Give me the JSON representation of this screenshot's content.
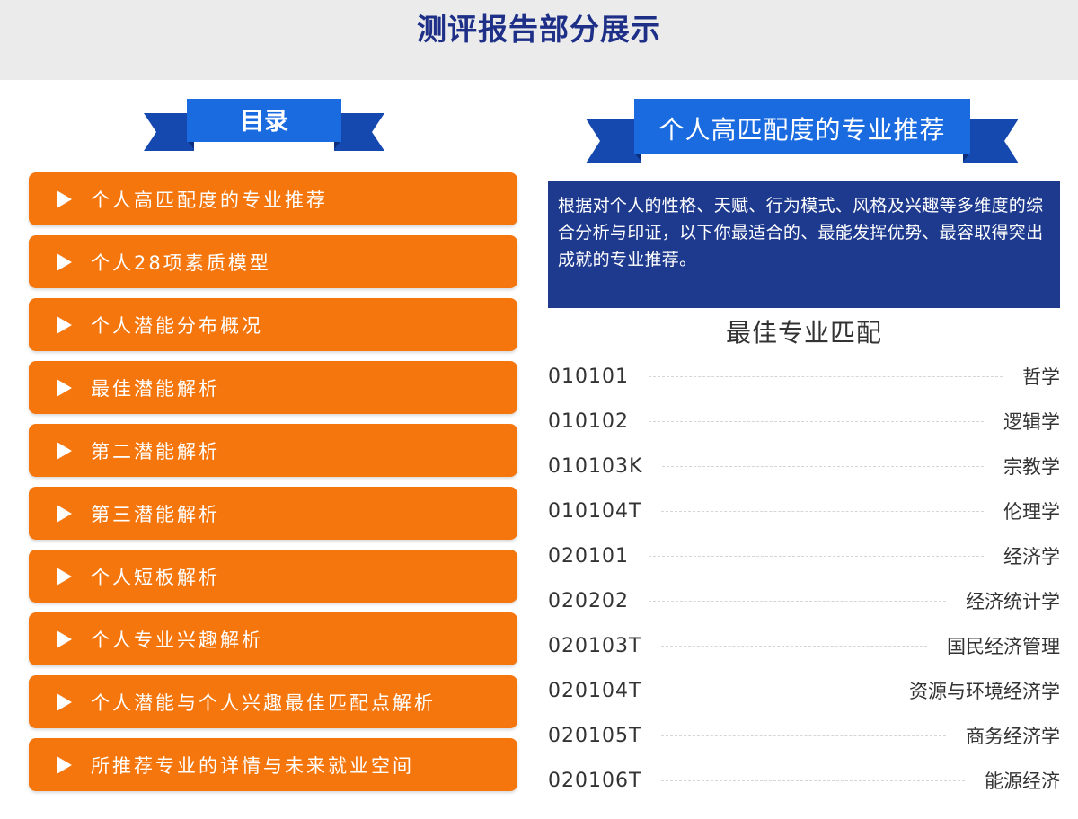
{
  "header": {
    "title": "测评报告部分展示"
  },
  "toc": {
    "ribbon_label": "目录",
    "items": [
      {
        "label": "个人高匹配度的专业推荐"
      },
      {
        "label": "个人28项素质模型"
      },
      {
        "label": "个人潜能分布概况"
      },
      {
        "label": "最佳潜能解析"
      },
      {
        "label": "第二潜能解析"
      },
      {
        "label": "第三潜能解析"
      },
      {
        "label": "个人短板解析"
      },
      {
        "label": "个人专业兴趣解析"
      },
      {
        "label": "个人潜能与个人兴趣最佳匹配点解析"
      },
      {
        "label": "所推荐专业的详情与未来就业空间"
      }
    ]
  },
  "recommend": {
    "ribbon_label": "个人高匹配度的专业推荐",
    "description": "根据对个人的性格、天赋、行为模式、风格及兴趣等多维度的综合分析与印证，以下你最适合的、最能发挥优势、最容取得突出成就的专业推荐。",
    "match_title": "最佳专业匹配",
    "majors": [
      {
        "code": "010101",
        "name": "哲学"
      },
      {
        "code": "010102",
        "name": "逻辑学"
      },
      {
        "code": "010103K",
        "name": "宗教学"
      },
      {
        "code": "010104T",
        "name": "伦理学"
      },
      {
        "code": "020101",
        "name": "经济学"
      },
      {
        "code": "020202",
        "name": "经济统计学"
      },
      {
        "code": "020103T",
        "name": "国民经济管理"
      },
      {
        "code": "020104T",
        "name": "资源与环境经济学"
      },
      {
        "code": "020105T",
        "name": "商务经济学"
      },
      {
        "code": "020106T",
        "name": "能源经济"
      }
    ]
  },
  "colors": {
    "title_blue": "#1e2f88",
    "ribbon_blue": "#1a58c9",
    "ribbon_dark": "#0f3d9a",
    "menu_orange": "#f5760d",
    "desc_blue": "#1e3a8e"
  },
  "icons": {
    "menu_bullet": "play-icon"
  }
}
